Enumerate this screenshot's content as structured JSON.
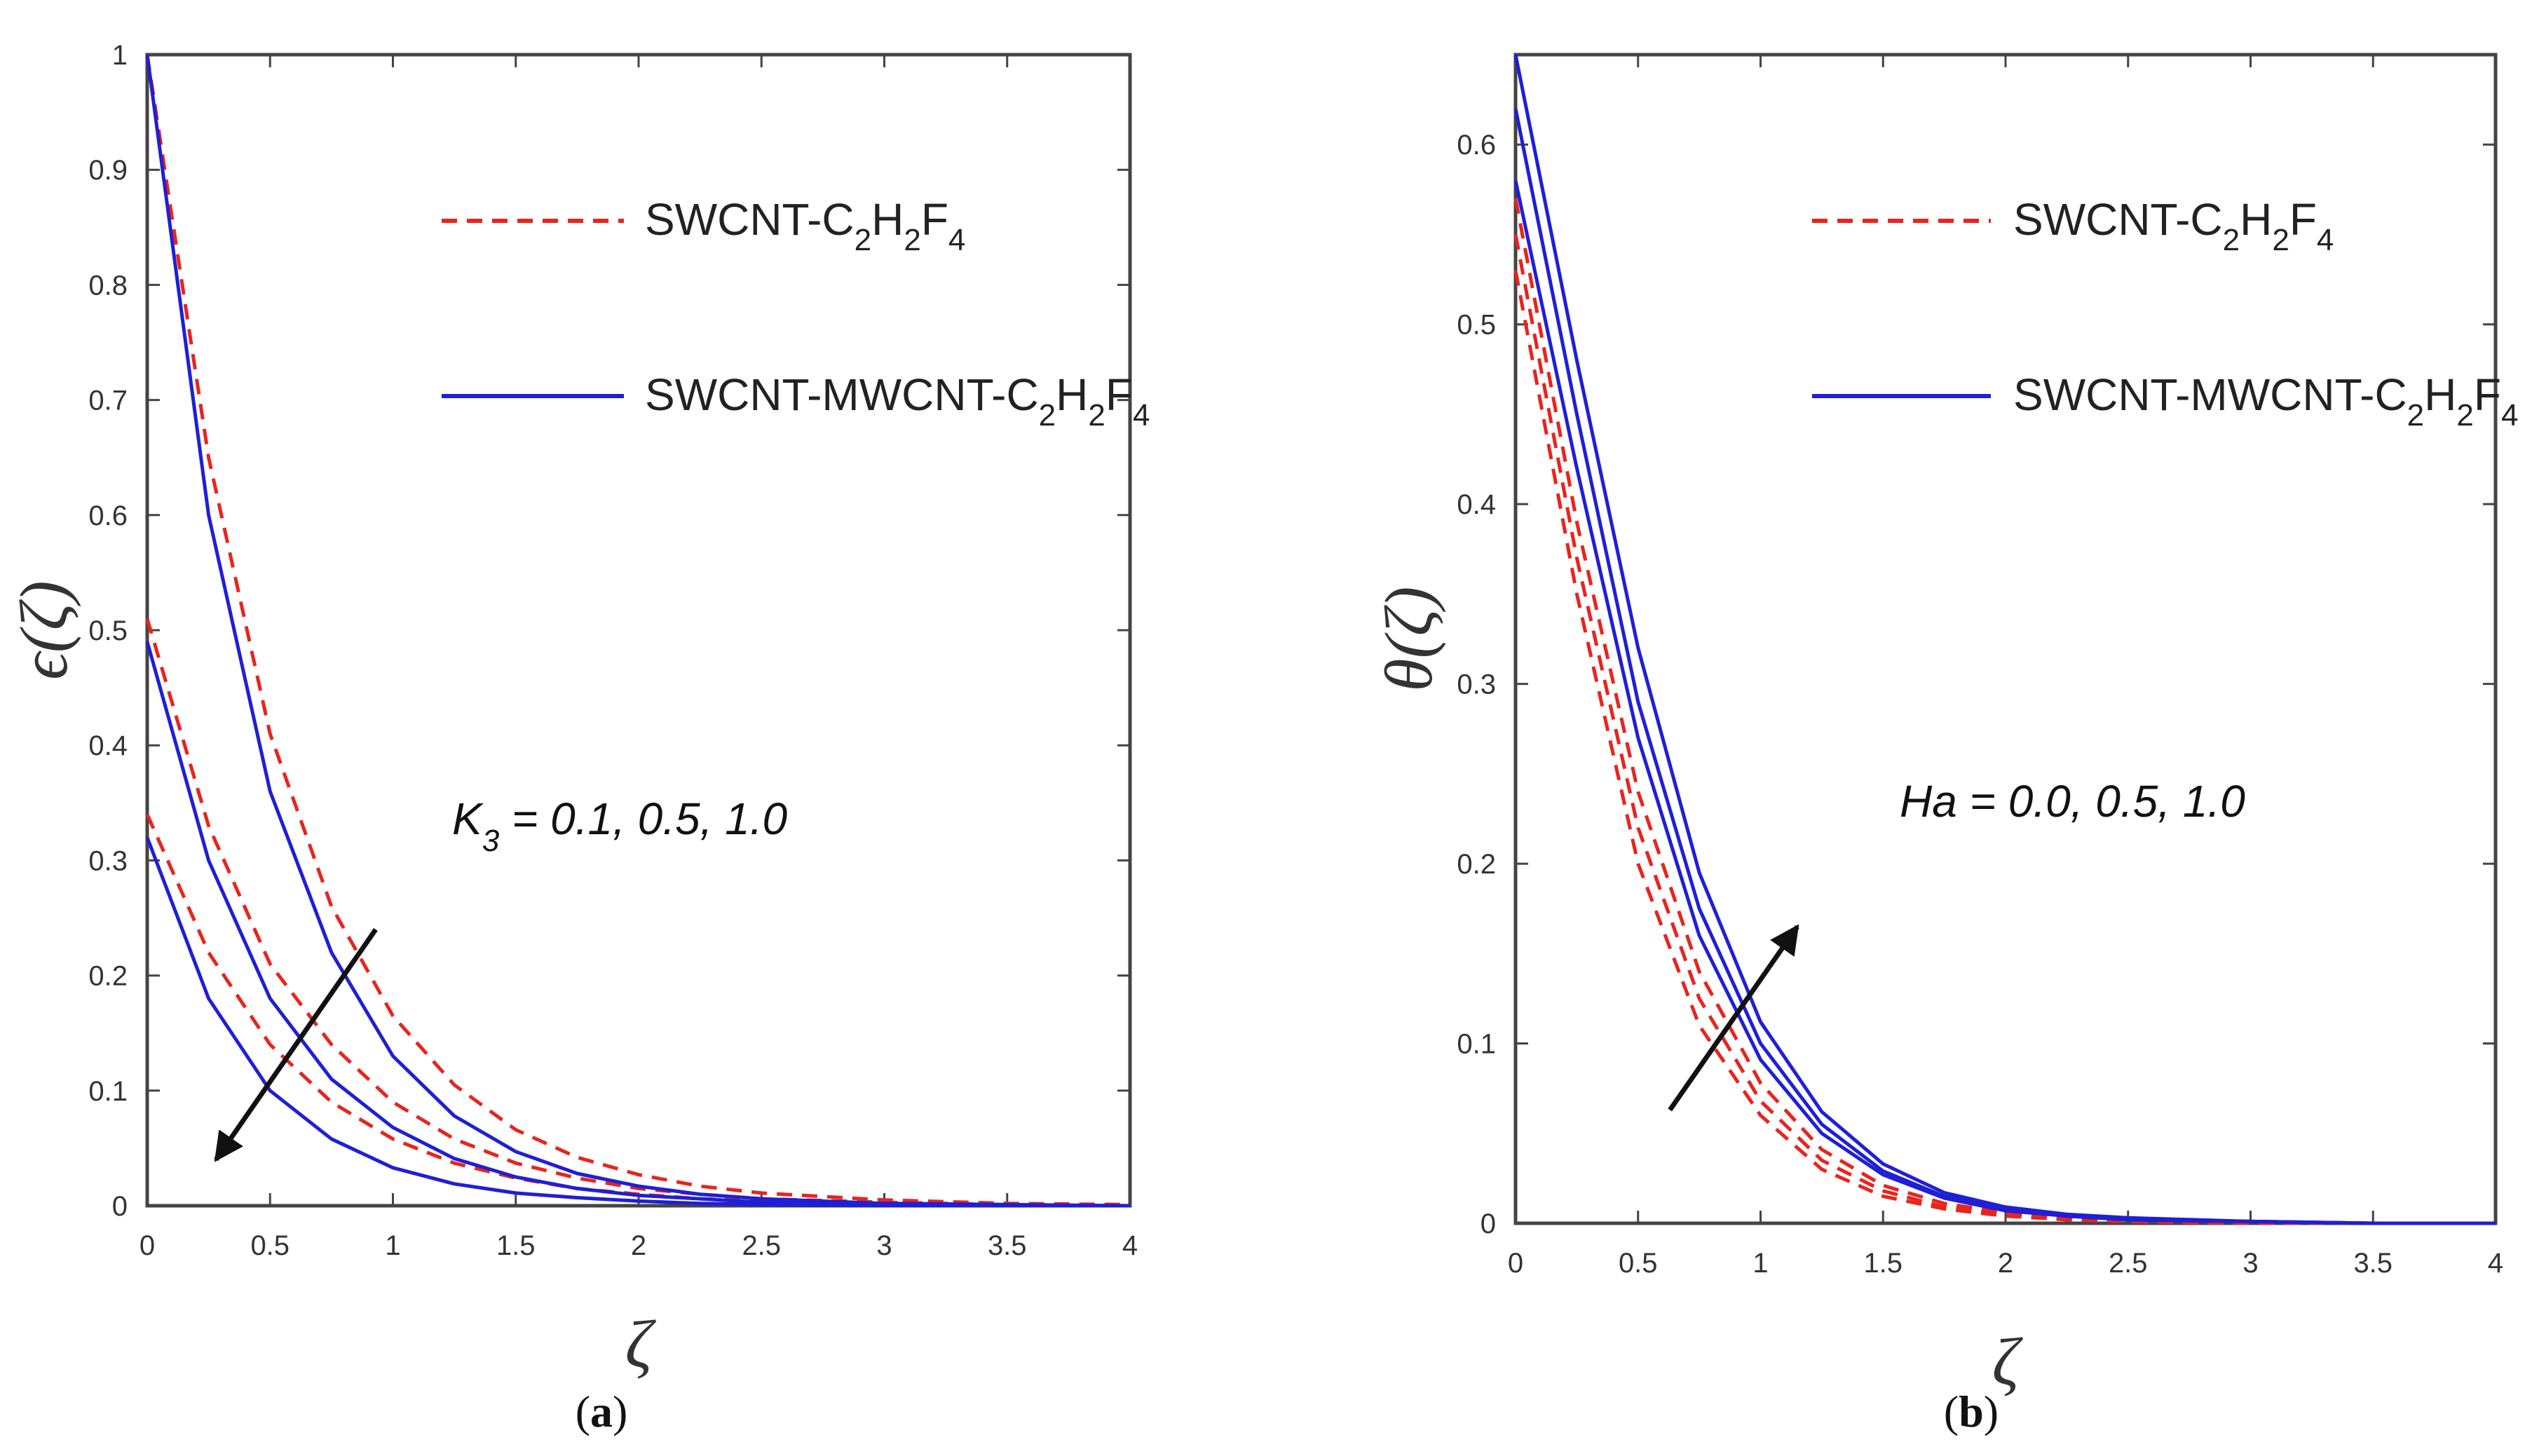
{
  "chart_data": [
    {
      "type": "line",
      "caption_open": "(",
      "caption_letter": "a",
      "caption_close": ")",
      "ylabel": "ϵ(ζ)",
      "xlabel": "ζ",
      "xlim": [
        0,
        4
      ],
      "ylim": [
        0,
        1
      ],
      "x_ticks": [
        "0",
        "0.5",
        "1",
        "1.5",
        "2",
        "2.5",
        "3",
        "3.5",
        "4"
      ],
      "y_ticks": [
        "0",
        "0.1",
        "0.2",
        "0.3",
        "0.4",
        "0.5",
        "0.6",
        "0.7",
        "0.8",
        "0.9",
        "1"
      ],
      "annotation": {
        "sym": "K",
        "sub": "3",
        "rest": " = 0.1, 0.5, 1.0"
      },
      "legend": [
        {
          "base": "SWCNT-C",
          "subs": [
            "2",
            "H",
            "2",
            "F",
            "4"
          ],
          "style": "dashed",
          "color": "#e8241e"
        },
        {
          "base": "SWCNT-MWCNT-C",
          "subs": [
            "2",
            "H",
            "2",
            "F",
            "4"
          ],
          "style": "solid",
          "color": "#1f1fd6"
        }
      ],
      "x": [
        0,
        0.25,
        0.5,
        0.75,
        1,
        1.25,
        1.5,
        1.75,
        2,
        2.25,
        2.5,
        3,
        3.5,
        4
      ],
      "series": [
        {
          "name": "SWCNT-C2H2F4 K3=0.1",
          "style": "dashed",
          "values": [
            1.0,
            0.65,
            0.41,
            0.26,
            0.165,
            0.105,
            0.066,
            0.042,
            0.027,
            0.017,
            0.011,
            0.005,
            0.002,
            0.001
          ]
        },
        {
          "name": "SWCNT-C2H2F4 K3=0.5",
          "style": "dashed",
          "values": [
            0.51,
            0.33,
            0.21,
            0.14,
            0.09,
            0.058,
            0.037,
            0.024,
            0.015,
            0.01,
            0.006,
            0.003,
            0.001,
            0.0
          ]
        },
        {
          "name": "SWCNT-C2H2F4 K3=1.0",
          "style": "dashed",
          "values": [
            0.34,
            0.22,
            0.14,
            0.09,
            0.058,
            0.037,
            0.024,
            0.015,
            0.01,
            0.006,
            0.004,
            0.002,
            0.001,
            0.0
          ]
        },
        {
          "name": "SWCNT-MWCNT-C2H2F4 K3=0.1",
          "style": "solid",
          "values": [
            1.0,
            0.6,
            0.36,
            0.22,
            0.13,
            0.078,
            0.047,
            0.028,
            0.017,
            0.01,
            0.006,
            0.002,
            0.001,
            0.0
          ]
        },
        {
          "name": "SWCNT-MWCNT-C2H2F4 K3=0.5",
          "style": "solid",
          "values": [
            0.49,
            0.3,
            0.18,
            0.11,
            0.068,
            0.041,
            0.025,
            0.015,
            0.009,
            0.006,
            0.003,
            0.001,
            0.0,
            0.0
          ]
        },
        {
          "name": "SWCNT-MWCNT-C2H2F4 K3=1.0",
          "style": "solid",
          "values": [
            0.32,
            0.18,
            0.1,
            0.058,
            0.033,
            0.019,
            0.011,
            0.007,
            0.004,
            0.002,
            0.001,
            0.0,
            0.0,
            0.0
          ]
        }
      ],
      "arrow": {
        "from": [
          0.93,
          0.24
        ],
        "to": [
          0.28,
          0.04
        ]
      }
    },
    {
      "type": "line",
      "caption_open": "(",
      "caption_letter": "b",
      "caption_close": ")",
      "ylabel": "θ(ζ)",
      "xlabel": "ζ",
      "xlim": [
        0,
        4
      ],
      "ylim": [
        0,
        0.65
      ],
      "x_ticks": [
        "0",
        "0.5",
        "1",
        "1.5",
        "2",
        "2.5",
        "3",
        "3.5",
        "4"
      ],
      "y_ticks": [
        "0",
        "0.1",
        "0.2",
        "0.3",
        "0.4",
        "0.5",
        "0.6"
      ],
      "annotation": {
        "sym": "Ha",
        "sub": "",
        "rest": " = 0.0, 0.5, 1.0"
      },
      "legend": [
        {
          "base": "SWCNT-C",
          "subs": [
            "2",
            "H",
            "2",
            "F",
            "4"
          ],
          "style": "dashed",
          "color": "#e8241e"
        },
        {
          "base": "SWCNT-MWCNT-C",
          "subs": [
            "2",
            "H",
            "2",
            "F",
            "4"
          ],
          "style": "solid",
          "color": "#1f1fd6"
        }
      ],
      "x": [
        0,
        0.25,
        0.5,
        0.75,
        1,
        1.25,
        1.5,
        1.75,
        2,
        2.25,
        2.5,
        3,
        3.5,
        4
      ],
      "series": [
        {
          "name": "SWCNT-C2H2F4 Ha=0.0",
          "style": "dashed",
          "values": [
            0.53,
            0.35,
            0.2,
            0.11,
            0.06,
            0.03,
            0.015,
            0.008,
            0.004,
            0.002,
            0.001,
            0.0,
            0.0,
            0.0
          ]
        },
        {
          "name": "SWCNT-C2H2F4 Ha=0.5",
          "style": "dashed",
          "values": [
            0.55,
            0.37,
            0.22,
            0.125,
            0.068,
            0.035,
            0.018,
            0.009,
            0.005,
            0.002,
            0.001,
            0.0,
            0.0,
            0.0
          ]
        },
        {
          "name": "SWCNT-C2H2F4 Ha=1.0",
          "style": "dashed",
          "values": [
            0.57,
            0.39,
            0.24,
            0.14,
            0.078,
            0.041,
            0.021,
            0.011,
            0.006,
            0.003,
            0.001,
            0.0,
            0.0,
            0.0
          ]
        },
        {
          "name": "SWCNT-MWCNT-C2H2F4 Ha=0.0",
          "style": "solid",
          "values": [
            0.58,
            0.42,
            0.27,
            0.16,
            0.091,
            0.05,
            0.027,
            0.014,
            0.007,
            0.004,
            0.002,
            0.001,
            0.0,
            0.0
          ]
        },
        {
          "name": "SWCNT-MWCNT-C2H2F4 Ha=0.5",
          "style": "solid",
          "values": [
            0.62,
            0.45,
            0.29,
            0.175,
            0.1,
            0.055,
            0.029,
            0.015,
            0.008,
            0.004,
            0.002,
            0.001,
            0.0,
            0.0
          ]
        },
        {
          "name": "SWCNT-MWCNT-C2H2F4 Ha=1.0",
          "style": "solid",
          "values": [
            0.65,
            0.48,
            0.32,
            0.195,
            0.112,
            0.062,
            0.033,
            0.017,
            0.009,
            0.005,
            0.003,
            0.001,
            0.0,
            0.0
          ]
        }
      ],
      "arrow": {
        "from": [
          0.63,
          0.063
        ],
        "to": [
          1.15,
          0.165
        ]
      }
    }
  ]
}
